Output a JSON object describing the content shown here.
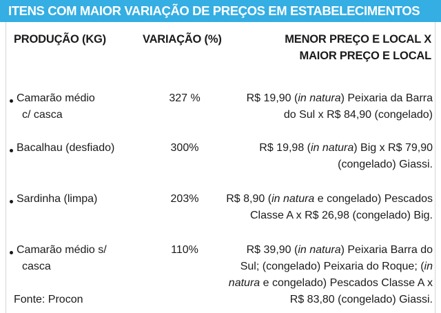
{
  "banner": {
    "title": "ITENS COM MAIOR VARIAÇÃO DE PREÇOS EM ESTABELECIMENTOS"
  },
  "table": {
    "headers": {
      "production": "PRODUÇÃO (KG)",
      "variation": "VARIAÇÃO (%)",
      "price_line1": "MENOR PREÇO E LOCAL X",
      "price_line2": "MAIOR PREÇO E LOCAL"
    },
    "rows": [
      {
        "item_line1": "Camarão médio",
        "item_line2": "c/ casca",
        "variation": "327 %",
        "price": [
          {
            "a": "R$ 19,90 (",
            "i": "in natura",
            "b": ") Peixaria da Barra"
          },
          {
            "a": "do Sul x R$ 84,90 (congelado)",
            "i": "",
            "b": ""
          }
        ]
      },
      {
        "item_line1": "Bacalhau (desfiado)",
        "item_line2": "",
        "variation": "300%",
        "price": [
          {
            "a": "R$ 19,98 (",
            "i": "in natura",
            "b": ") Big x R$ 79,90"
          },
          {
            "a": "(congelado) Giassi.",
            "i": "",
            "b": ""
          }
        ]
      },
      {
        "item_line1": "Sardinha (limpa)",
        "item_line2": "",
        "variation": "203%",
        "price": [
          {
            "a": "R$ 8,90 (",
            "i": "in natura",
            "b": " e congelado) Pescados"
          },
          {
            "a": "Classe A x R$ 26,98 (congelado) Big.",
            "i": "",
            "b": ""
          }
        ]
      },
      {
        "item_line1": "Camarão médio s/",
        "item_line2": "casca",
        "variation": "110%",
        "price": [
          {
            "a": "R$ 39,90 (",
            "i": "in natura",
            "b": ") Peixaria Barra do"
          },
          {
            "a": "Sul; (congelado) Peixaria do Roque; (",
            "i": "in",
            "b": ""
          },
          {
            "a": "",
            "i": "natura",
            "b": " e congelado) Pescados Classe A x"
          },
          {
            "a": "R$ 83,80 (congelado) Giassi.",
            "i": "",
            "b": ""
          }
        ]
      }
    ]
  },
  "footer": {
    "source": "Fonte: Procon"
  }
}
